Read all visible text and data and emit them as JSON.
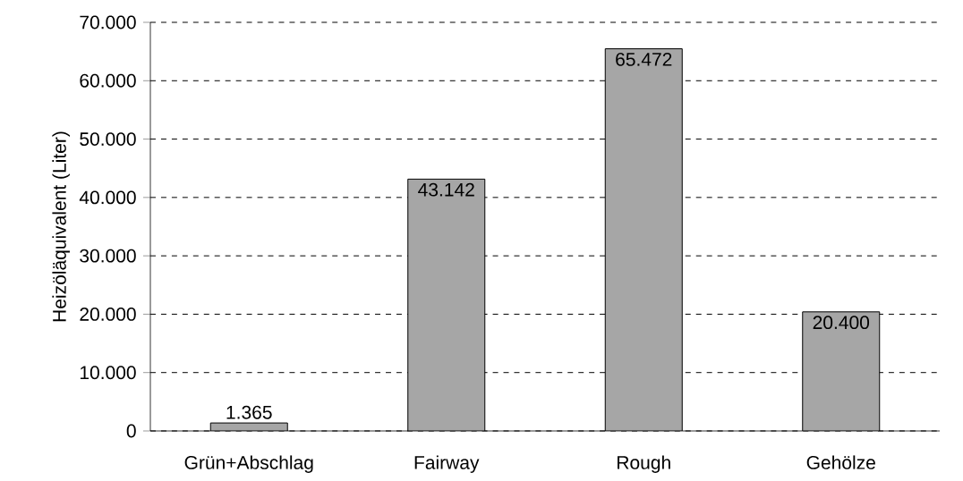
{
  "chart_data": {
    "type": "bar",
    "ylabel": "Heizöläquivalent (Liter)",
    "categories": [
      "Grün+Abschlag",
      "Fairway",
      "Rough",
      "Gehölze"
    ],
    "values": [
      1365,
      43142,
      65472,
      20400
    ],
    "value_labels": [
      "1.365",
      "43.142",
      "65.472",
      "20.400"
    ],
    "color": "#a6a6a6",
    "ylim": [
      0,
      70000
    ],
    "yticks": [
      {
        "value": 0,
        "label": "0"
      },
      {
        "value": 10000,
        "label": "10.000"
      },
      {
        "value": 20000,
        "label": "20.000"
      },
      {
        "value": 30000,
        "label": "30.000"
      },
      {
        "value": 40000,
        "label": "40.000"
      },
      {
        "value": 50000,
        "label": "50.000"
      },
      {
        "value": 60000,
        "label": "60.000"
      },
      {
        "value": 70000,
        "label": "70.000"
      }
    ],
    "grid": "y"
  }
}
